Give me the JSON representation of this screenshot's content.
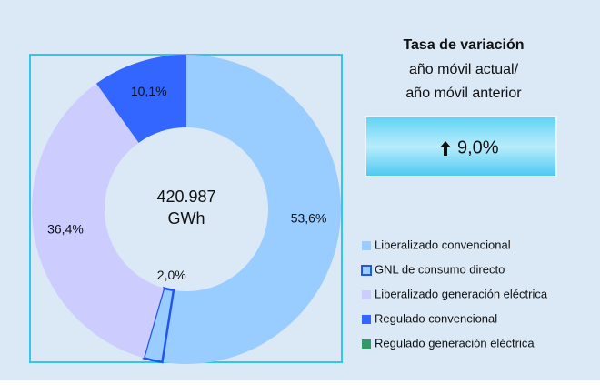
{
  "chart_data": {
    "type": "donut",
    "center_label": [
      "420.987",
      "GWh"
    ],
    "categories": [
      "Liberalizado convencional",
      "GNL de consumo directo",
      "Liberalizado generación eléctrica",
      "Regulado convencional",
      "Regulado generación eléctrica"
    ],
    "values": [
      53.6,
      2.0,
      36.4,
      10.1,
      0
    ],
    "value_labels": [
      "53,6%",
      "2,0%",
      "36,4%",
      "10,1%",
      null
    ],
    "colors": [
      "#99ccff",
      "#99ccff",
      "#ccccff",
      "#3366ff",
      "#339966"
    ],
    "borders": [
      null,
      "#2255ee",
      null,
      null,
      null
    ]
  },
  "panel": {
    "title": "Tasa de variación",
    "subtitle": [
      "año móvil actual/",
      "año móvil anterior"
    ],
    "change": "9,0%"
  }
}
